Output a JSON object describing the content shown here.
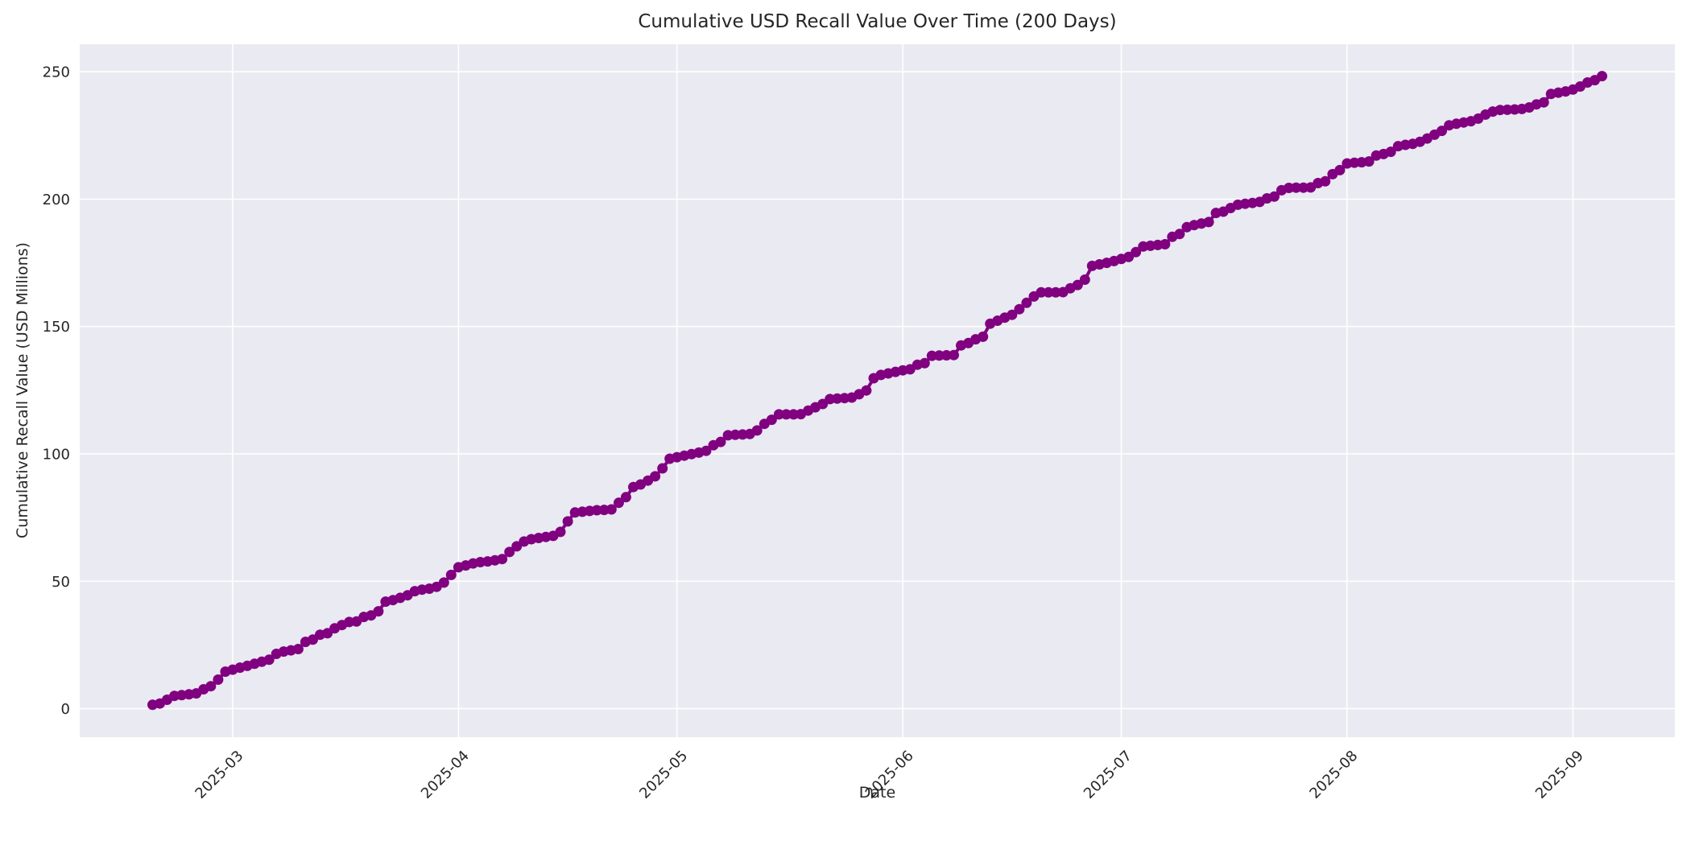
{
  "chart_data": {
    "type": "line",
    "title": "Cumulative USD Recall Value Over Time (200 Days)",
    "xlabel": "Date",
    "ylabel": "Cumulative Recall Value (USD Millions)",
    "legend": null,
    "grid": true,
    "plot_bg": "#EAEAF2",
    "grid_color": "#FFFFFF",
    "text_color": "#262626",
    "line_color": "#800080",
    "marker": "circle",
    "x_range": [
      "2025-02-08",
      "2025-09-15"
    ],
    "ylim": [
      -11.2,
      260.8
    ],
    "y_ticks": [
      0,
      50,
      100,
      150,
      200,
      250
    ],
    "x_ticks": [
      {
        "date": "2025-03-01",
        "label": "2025-03"
      },
      {
        "date": "2025-04-01",
        "label": "2025-04"
      },
      {
        "date": "2025-05-01",
        "label": "2025-05"
      },
      {
        "date": "2025-06-01",
        "label": "2025-06"
      },
      {
        "date": "2025-07-01",
        "label": "2025-07"
      },
      {
        "date": "2025-08-01",
        "label": "2025-08"
      },
      {
        "date": "2025-09-01",
        "label": "2025-09"
      }
    ],
    "series": [
      {
        "name": "Cumulative Recall Value (USD Millions)",
        "start_date": "2025-02-18",
        "end_date": "2025-09-05",
        "frequency": "daily",
        "n_points": 200,
        "values": [
          1.5,
          2.0,
          3.5,
          5.0,
          5.3,
          5.6,
          6.0,
          7.6,
          8.8,
          11.4,
          14.5,
          15.3,
          16.1,
          16.8,
          17.6,
          18.4,
          19.2,
          21.5,
          22.4,
          22.9,
          23.4,
          26.2,
          27.1,
          29.0,
          29.6,
          31.5,
          32.8,
          34.0,
          34.2,
          36.0,
          36.6,
          38.2,
          42.0,
          42.6,
          43.5,
          44.5,
          46.1,
          46.7,
          47.1,
          47.8,
          49.5,
          52.5,
          55.5,
          56.2,
          57.0,
          57.5,
          57.8,
          58.2,
          58.7,
          61.5,
          63.7,
          65.6,
          66.5,
          67.0,
          67.4,
          67.8,
          69.4,
          73.5,
          77.0,
          77.3,
          77.6,
          77.9,
          78.0,
          78.2,
          80.8,
          83.0,
          87.0,
          88.0,
          89.5,
          91.2,
          94.3,
          98.1,
          98.7,
          99.3,
          99.9,
          100.5,
          101.2,
          103.4,
          104.7,
          107.3,
          107.5,
          107.6,
          107.8,
          109.2,
          111.8,
          113.4,
          115.5,
          115.5,
          115.5,
          115.6,
          117.0,
          118.3,
          119.6,
          121.5,
          121.7,
          121.9,
          122.1,
          123.4,
          124.9,
          129.7,
          131.0,
          131.6,
          132.2,
          132.8,
          133.2,
          135.0,
          135.6,
          138.5,
          138.6,
          138.7,
          138.8,
          142.6,
          143.5,
          145.0,
          146.0,
          151.1,
          152.3,
          153.5,
          154.6,
          156.8,
          159.3,
          161.8,
          163.4,
          163.4,
          163.4,
          163.5,
          165.0,
          166.3,
          168.4,
          173.8,
          174.4,
          175.0,
          175.7,
          176.5,
          177.3,
          179.2,
          181.4,
          181.7,
          182.0,
          182.3,
          185.2,
          186.3,
          189.0,
          189.8,
          190.4,
          191.0,
          194.6,
          195.1,
          196.5,
          197.8,
          198.2,
          198.5,
          198.9,
          200.3,
          201.0,
          203.5,
          204.4,
          204.5,
          204.5,
          204.6,
          206.3,
          207.0,
          209.8,
          211.4,
          214.0,
          214.3,
          214.5,
          214.8,
          217.1,
          217.7,
          218.6,
          220.8,
          221.3,
          221.7,
          222.5,
          223.8,
          225.3,
          226.8,
          229.0,
          229.6,
          230.1,
          230.6,
          231.6,
          233.2,
          234.4,
          235.0,
          235.1,
          235.2,
          235.4,
          236.0,
          237.2,
          238.0,
          241.3,
          241.8,
          242.3,
          243.0,
          244.2,
          245.8,
          246.7,
          248.3
        ]
      }
    ]
  }
}
